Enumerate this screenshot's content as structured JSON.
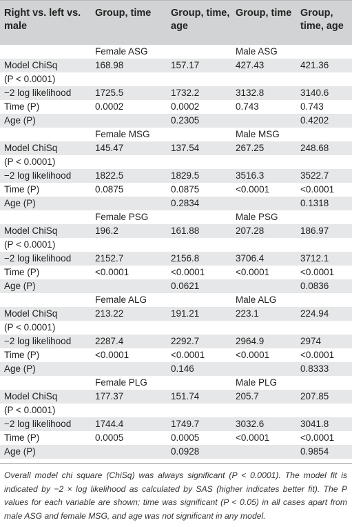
{
  "header": {
    "col0": "Right vs. left vs. male",
    "col1": "Group, time",
    "col2": "Group, time, age",
    "col3": "Group, time",
    "col4": "Group, time, age"
  },
  "blocks": [
    {
      "female_label": "Female ASG",
      "male_label": "Male ASG",
      "rows": [
        {
          "label": "Model ChiSq",
          "values": [
            "168.98",
            "157.17",
            "427.43",
            "421.36"
          ]
        },
        {
          "label": "(P < 0.0001)",
          "values": [
            "",
            "",
            "",
            ""
          ]
        },
        {
          "label": "−2 log likelihood",
          "values": [
            "1725.5",
            "1732.2",
            "3132.8",
            "3140.6"
          ]
        },
        {
          "label": "Time (P)",
          "values": [
            "0.0002",
            "0.0002",
            "0.743",
            "0.743"
          ]
        },
        {
          "label": "Age (P)",
          "values": [
            "",
            "0.2305",
            "",
            "0.4202"
          ]
        }
      ]
    },
    {
      "female_label": "Female MSG",
      "male_label": "Male MSG",
      "rows": [
        {
          "label": "Model ChiSq",
          "values": [
            "145.47",
            "137.54",
            "267.25",
            "248.68"
          ]
        },
        {
          "label": "(P < 0.0001)",
          "values": [
            "",
            "",
            "",
            ""
          ]
        },
        {
          "label": "−2 log likelihood",
          "values": [
            "1822.5",
            "1829.5",
            "3516.3",
            "3522.7"
          ]
        },
        {
          "label": "Time (P)",
          "values": [
            "0.0875",
            "0.0875",
            "<0.0001",
            "<0.0001"
          ]
        },
        {
          "label": "Age (P)",
          "values": [
            "",
            "0.2834",
            "",
            "0.1318"
          ]
        }
      ]
    },
    {
      "female_label": "Female PSG",
      "male_label": "Male PSG",
      "rows": [
        {
          "label": "Model ChiSq",
          "values": [
            "196.2",
            "161.88",
            "207.28",
            "186.97"
          ]
        },
        {
          "label": "(P < 0.0001)",
          "values": [
            "",
            "",
            "",
            ""
          ]
        },
        {
          "label": "−2 log likelihood",
          "values": [
            "2152.7",
            "2156.8",
            "3706.4",
            "3712.1"
          ]
        },
        {
          "label": "Time (P)",
          "values": [
            "<0.0001",
            "<0.0001",
            "<0.0001",
            "<0.0001"
          ]
        },
        {
          "label": "Age (P)",
          "values": [
            "",
            "0.0621",
            "",
            "0.0836"
          ]
        }
      ]
    },
    {
      "female_label": "Female ALG",
      "male_label": "Male ALG",
      "rows": [
        {
          "label": "Model ChiSq",
          "values": [
            "213.22",
            "191.21",
            "223.1",
            "224.94"
          ]
        },
        {
          "label": "(P < 0.0001)",
          "values": [
            "",
            "",
            "",
            ""
          ]
        },
        {
          "label": "−2 log likelihood",
          "values": [
            "2287.4",
            "2292.7",
            "2964.9",
            "2974"
          ]
        },
        {
          "label": "Time (P)",
          "values": [
            "<0.0001",
            "<0.0001",
            "<0.0001",
            "<0.0001"
          ]
        },
        {
          "label": "Age (P)",
          "values": [
            "",
            "0.146",
            "",
            "0.8333"
          ]
        }
      ]
    },
    {
      "female_label": "Female PLG",
      "male_label": "Male PLG",
      "rows": [
        {
          "label": "Model ChiSq",
          "values": [
            "177.37",
            "151.74",
            "205.7",
            "207.85"
          ]
        },
        {
          "label": "(P < 0.0001)",
          "values": [
            "",
            "",
            "",
            ""
          ]
        },
        {
          "label": "−2 log likelihood",
          "values": [
            "1744.4",
            "1749.7",
            "3032.6",
            "3041.8"
          ]
        },
        {
          "label": "Time (P)",
          "values": [
            "0.0005",
            "0.0005",
            "<0.0001",
            "<0.0001"
          ]
        },
        {
          "label": "Age (P)",
          "values": [
            "",
            "0.0928",
            "",
            "0.9854"
          ]
        }
      ]
    }
  ],
  "footnote": "Overall model chi square (ChiSq) was always significant (P < 0.0001). The model fit is indicated by −2 × log likelihood as calculated by SAS (higher indicates better fit). The P values for each variable are shown; time was significant (P < 0.05) in all cases apart from male ASG and female MSG, and age was not significant in any model."
}
